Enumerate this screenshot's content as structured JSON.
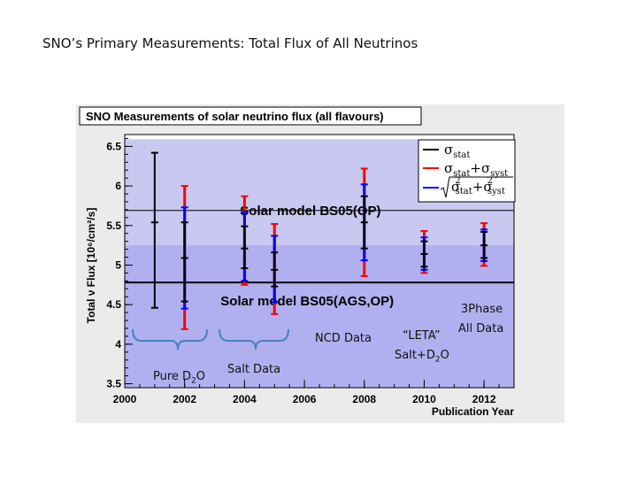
{
  "slide_title": "SNO’s Primary Measurements: Total Flux of All Neutrinos",
  "chart_data": {
    "type": "scatter",
    "title": "SNO Measurements of solar neutrino flux (all flavours)",
    "xlabel": "Publication Year",
    "ylabel": "Total ν Flux [10⁶/cm²/s]",
    "xlim": [
      2000,
      2013
    ],
    "ylim": [
      3.45,
      6.65
    ],
    "x_ticks": [
      2000,
      2002,
      2004,
      2006,
      2008,
      2010,
      2012
    ],
    "y_ticks": [
      3.5,
      4,
      4.5,
      5,
      5.5,
      6,
      6.5
    ],
    "grid": false,
    "legend_position": "top-right",
    "legend": {
      "stat": "σ",
      "stat_sub": "stat",
      "statsyst_sub1": "stat",
      "statsyst_plus": "+σ",
      "statsyst_sub2": "syst",
      "quad_sub1": "stat",
      "quad_plus": "+σ",
      "quad_sub2": "syst",
      "quad_sup": "2"
    },
    "models": [
      {
        "label": "Solar model BS05(OP)",
        "value": 5.69,
        "band": [
          4.79,
          6.59
        ],
        "color": "#c8c8f0"
      },
      {
        "label": "Solar model BS05(AGS,OP)",
        "value": 4.78,
        "band": [
          4.0,
          5.25
        ],
        "color": "#b0b0f0"
      }
    ],
    "measurements": [
      {
        "year": 2001,
        "flux": 5.54,
        "stat_lo": 4.46,
        "stat_hi": 6.42,
        "syst_lo": null,
        "syst_hi": null,
        "quad_lo": null,
        "quad_hi": null
      },
      {
        "year": 2002,
        "flux": 5.09,
        "stat_lo": 4.54,
        "stat_hi": 5.54,
        "syst_lo": 4.19,
        "syst_hi": 6.0,
        "quad_lo": 4.45,
        "quad_hi": 5.73
      },
      {
        "year": 2004,
        "flux": 5.21,
        "stat_lo": 4.96,
        "stat_hi": 5.49,
        "syst_lo": 4.75,
        "syst_hi": 5.87,
        "quad_lo": 4.8,
        "quad_hi": 5.67
      },
      {
        "year": 2005,
        "flux": 4.94,
        "stat_lo": 4.73,
        "stat_hi": 5.16,
        "syst_lo": 4.38,
        "syst_hi": 5.52,
        "quad_lo": 4.53,
        "quad_hi": 5.37
      },
      {
        "year": 2008,
        "flux": 5.54,
        "stat_lo": 5.21,
        "stat_hi": 5.87,
        "syst_lo": 4.86,
        "syst_hi": 6.22,
        "quad_lo": 5.06,
        "quad_hi": 6.02
      },
      {
        "year": 2010,
        "flux": 5.14,
        "stat_lo": 4.98,
        "stat_hi": 5.3,
        "syst_lo": 4.9,
        "syst_hi": 5.43,
        "quad_lo": 4.94,
        "quad_hi": 5.35
      },
      {
        "year": 2012,
        "flux": 5.25,
        "stat_lo": 5.09,
        "stat_hi": 5.42,
        "syst_lo": 4.99,
        "syst_hi": 5.53,
        "quad_lo": 5.05,
        "quad_hi": 5.45
      }
    ],
    "colors": {
      "stat": "#000000",
      "syst": "#ff0000",
      "quad": "#0000ff",
      "frame_bg": "#ebebeb"
    }
  },
  "annotations": {
    "pure_d2o_pre": "Pure D",
    "pure_d2o_sub": "2",
    "pure_d2o_post": "O",
    "salt": "Salt Data",
    "ncd": "NCD Data",
    "leta_line1": "“LETA”",
    "leta_line2_pre": "Salt+D",
    "leta_line2_sub": "2",
    "leta_line2_post": "O",
    "threephase_line1": "3Phase",
    "threephase_line2": "All Data"
  }
}
